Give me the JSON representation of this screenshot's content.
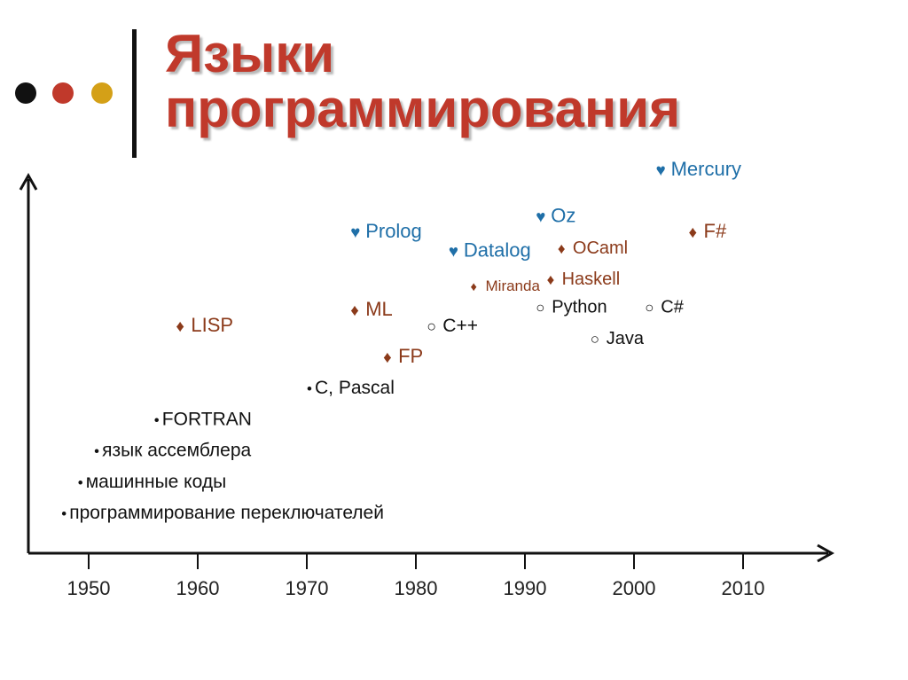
{
  "title": {
    "line1": "Языки",
    "line2": "программирования"
  },
  "colors": {
    "title": "#c0392b",
    "dots": [
      "#111111",
      "#c0392b",
      "#d4a017"
    ],
    "functional": "#8b3a1a",
    "logic": "#1f6fa8",
    "imperative": "#111111",
    "axis": "#111111"
  },
  "x_axis": {
    "ticks": [
      1950,
      1960,
      1970,
      1980,
      1990,
      2000,
      2010
    ]
  },
  "items": [
    {
      "text": "программирование переключателей",
      "year": 1947.5,
      "level": 1,
      "marker": "•",
      "kind": "imperative",
      "size": 21
    },
    {
      "text": "машинные коды",
      "year": 1949,
      "level": 2,
      "marker": "•",
      "kind": "imperative",
      "size": 21
    },
    {
      "text": "язык ассемблера",
      "year": 1950.5,
      "level": 3,
      "marker": "•",
      "kind": "imperative",
      "size": 21
    },
    {
      "text": "FORTRAN",
      "year": 1956,
      "level": 4,
      "marker": "•",
      "kind": "imperative",
      "size": 21
    },
    {
      "text": "C, Pascal",
      "year": 1970,
      "level": 5,
      "marker": "•",
      "kind": "imperative",
      "size": 21
    },
    {
      "text": "LISP",
      "year": 1958,
      "level": 7,
      "marker": "♦",
      "kind": "functional",
      "size": 22
    },
    {
      "text": "ML",
      "year": 1974,
      "level": 7.5,
      "marker": "♦",
      "kind": "functional",
      "size": 22
    },
    {
      "text": "FP",
      "year": 1977,
      "level": 6,
      "marker": "♦",
      "kind": "functional",
      "size": 22
    },
    {
      "text": "C++",
      "year": 1981,
      "level": 7,
      "marker": "○",
      "kind": "imperative",
      "size": 21
    },
    {
      "text": "Prolog",
      "year": 1974,
      "level": 10,
      "marker": "♥",
      "kind": "logic",
      "size": 22
    },
    {
      "text": "Datalog",
      "year": 1983,
      "level": 9.4,
      "marker": "♥",
      "kind": "logic",
      "size": 22
    },
    {
      "text": "Miranda",
      "year": 1985,
      "level": 8.3,
      "marker": "♦",
      "kind": "functional",
      "size": 17
    },
    {
      "text": "Oz",
      "year": 1991,
      "level": 10.5,
      "marker": "♥",
      "kind": "logic",
      "size": 22
    },
    {
      "text": "OCaml",
      "year": 1993,
      "level": 9.5,
      "marker": "♦",
      "kind": "functional",
      "size": 20
    },
    {
      "text": "Haskell",
      "year": 1992,
      "level": 8.5,
      "marker": "♦",
      "kind": "functional",
      "size": 20
    },
    {
      "text": "Python",
      "year": 1991,
      "level": 7.6,
      "marker": "○",
      "kind": "imperative",
      "size": 20
    },
    {
      "text": "Java",
      "year": 1996,
      "level": 6.6,
      "marker": "○",
      "kind": "imperative",
      "size": 20
    },
    {
      "text": "C#",
      "year": 2001,
      "level": 7.6,
      "marker": "○",
      "kind": "imperative",
      "size": 20
    },
    {
      "text": "Mercury",
      "year": 2002,
      "level": 12,
      "marker": "♥",
      "kind": "logic",
      "size": 22
    },
    {
      "text": "F#",
      "year": 2005,
      "level": 10,
      "marker": "♦",
      "kind": "functional",
      "size": 22
    }
  ]
}
